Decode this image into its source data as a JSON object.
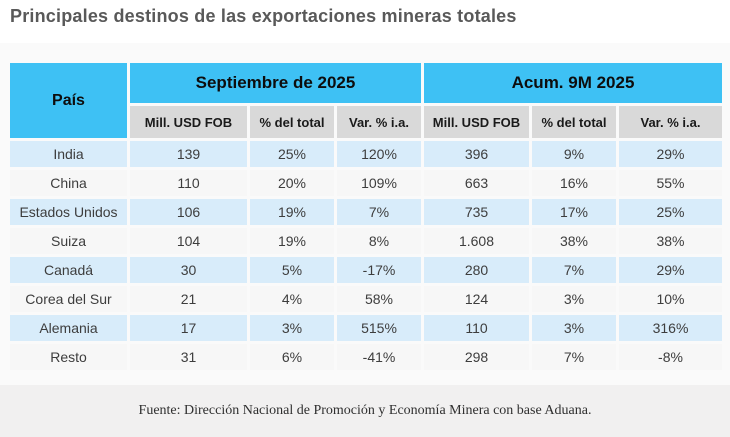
{
  "title": "Principales destinos de las exportaciones mineras totales",
  "colors": {
    "accent_cyan": "#3EC1F4",
    "row_blue": "#D8ECFA",
    "row_gray": "#F7F7F7",
    "subheader_gray": "#D9D9D9",
    "footer_band": "#F1F0F0",
    "title_text": "#595959",
    "cell_text": "#3D3D3D"
  },
  "table": {
    "country_header": "País",
    "groups": [
      {
        "label": "Septiembre de 2025",
        "columns": [
          "Mill. USD FOB",
          "% del total",
          "Var. % i.a."
        ]
      },
      {
        "label": "Acum. 9M 2025",
        "columns": [
          "Mill. USD FOB",
          "% del total",
          "Var. % i.a."
        ]
      }
    ],
    "rows": [
      {
        "country": "India",
        "sep": [
          "139",
          "25%",
          "120%"
        ],
        "acum": [
          "396",
          "9%",
          "29%"
        ]
      },
      {
        "country": "China",
        "sep": [
          "110",
          "20%",
          "109%"
        ],
        "acum": [
          "663",
          "16%",
          "55%"
        ]
      },
      {
        "country": "Estados Unidos",
        "sep": [
          "106",
          "19%",
          "7%"
        ],
        "acum": [
          "735",
          "17%",
          "25%"
        ]
      },
      {
        "country": "Suiza",
        "sep": [
          "104",
          "19%",
          "8%"
        ],
        "acum": [
          "1.608",
          "38%",
          "38%"
        ]
      },
      {
        "country": "Canadá",
        "sep": [
          "30",
          "5%",
          "-17%"
        ],
        "acum": [
          "280",
          "7%",
          "29%"
        ]
      },
      {
        "country": "Corea del Sur",
        "sep": [
          "21",
          "4%",
          "58%"
        ],
        "acum": [
          "124",
          "3%",
          "10%"
        ]
      },
      {
        "country": "Alemania",
        "sep": [
          "17",
          "3%",
          "515%"
        ],
        "acum": [
          "110",
          "3%",
          "316%"
        ]
      },
      {
        "country": "Resto",
        "sep": [
          "31",
          "6%",
          "-41%"
        ],
        "acum": [
          "298",
          "7%",
          "-8%"
        ]
      }
    ]
  },
  "footer": {
    "source": "Fuente: Dirección Nacional de Promoción y Economía Minera con base Aduana."
  },
  "chart_data": {
    "type": "table",
    "title": "Principales destinos de las exportaciones mineras totales",
    "column_groups": [
      "Septiembre de 2025",
      "Acum. 9M 2025"
    ],
    "columns": [
      "País",
      "Sep Mill. USD FOB",
      "Sep % del total",
      "Sep Var. % i.a.",
      "Acum Mill. USD FOB",
      "Acum % del total",
      "Acum Var. % i.a."
    ],
    "rows": [
      [
        "India",
        139,
        25,
        120,
        396,
        9,
        29
      ],
      [
        "China",
        110,
        20,
        109,
        663,
        16,
        55
      ],
      [
        "Estados Unidos",
        106,
        19,
        7,
        735,
        17,
        25
      ],
      [
        "Suiza",
        104,
        19,
        8,
        1608,
        38,
        38
      ],
      [
        "Canadá",
        30,
        5,
        -17,
        280,
        7,
        29
      ],
      [
        "Corea del Sur",
        21,
        4,
        58,
        124,
        3,
        10
      ],
      [
        "Alemania",
        17,
        3,
        515,
        110,
        3,
        316
      ],
      [
        "Resto",
        31,
        6,
        -41,
        298,
        7,
        -8
      ]
    ],
    "units": {
      "value_columns": "Mill. USD FOB",
      "percent_columns": "%"
    },
    "source": "Fuente: Dirección Nacional de Promoción y Economía Minera con base Aduana."
  }
}
